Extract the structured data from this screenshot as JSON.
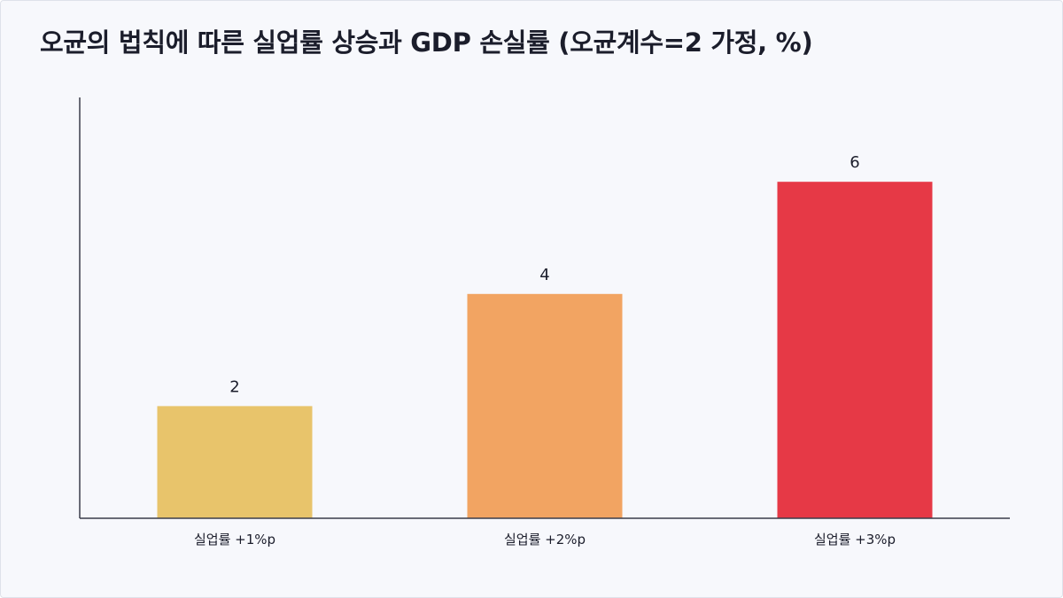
{
  "chart_data": {
    "type": "bar",
    "title": "오균의 법칙에 따른 실업률 상승과 GDP 손실률 (오균계수=2 가정, %)",
    "xlabel": "",
    "ylabel": "",
    "categories": [
      "실업률 +1%p",
      "실업률 +2%p",
      "실업률 +3%p"
    ],
    "values": [
      2,
      4,
      6
    ],
    "colors": [
      "#e8c46b",
      "#f2a462",
      "#e63946"
    ],
    "ylim": [
      0,
      7.5
    ],
    "grid": false,
    "legend": "none",
    "data_labels": true
  }
}
